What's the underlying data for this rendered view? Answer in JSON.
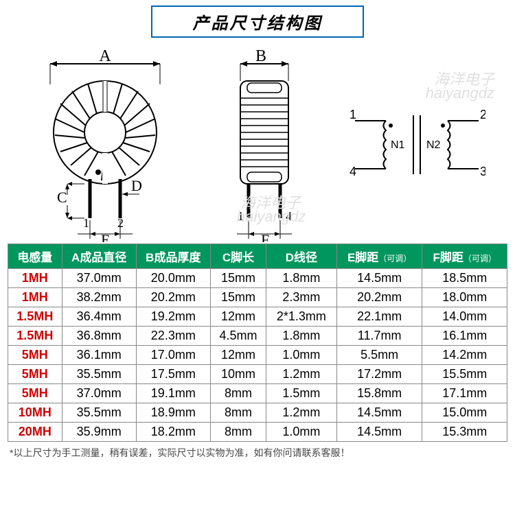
{
  "title": "产品尺寸结构图",
  "watermark": {
    "line1": "海洋电子",
    "line2": "haiyangdz"
  },
  "diagram_labels": {
    "A": "A",
    "B": "B",
    "C": "C",
    "D": "D",
    "E": "E",
    "F": "F",
    "pin1": "1",
    "pin2": "2",
    "pin3": "3",
    "pin4": "4",
    "N1": "N1",
    "N2": "N2"
  },
  "table": {
    "headers": [
      {
        "main": "电感量",
        "sub": ""
      },
      {
        "main": "A成品直径",
        "sub": ""
      },
      {
        "main": "B成品厚度",
        "sub": ""
      },
      {
        "main": "C脚长",
        "sub": ""
      },
      {
        "main": "D线径",
        "sub": ""
      },
      {
        "main": "E脚距",
        "sub": "（可调）"
      },
      {
        "main": "F脚距",
        "sub": "（可调）"
      }
    ],
    "rows": [
      [
        "1MH",
        "37.0mm",
        "20.0mm",
        "15mm",
        "1.8mm",
        "14.5mm",
        "18.5mm"
      ],
      [
        "1MH",
        "38.2mm",
        "20.2mm",
        "15mm",
        "2.3mm",
        "20.2mm",
        "18.0mm"
      ],
      [
        "1.5MH",
        "36.4mm",
        "19.2mm",
        "12mm",
        "2*1.3mm",
        "22.1mm",
        "14.0mm"
      ],
      [
        "1.5MH",
        "36.8mm",
        "22.3mm",
        "4.5mm",
        "1.8mm",
        "11.7mm",
        "16.1mm"
      ],
      [
        "5MH",
        "36.1mm",
        "17.0mm",
        "12mm",
        "1.0mm",
        "5.5mm",
        "14.2mm"
      ],
      [
        "5MH",
        "35.5mm",
        "17.5mm",
        "10mm",
        "1.2mm",
        "17.2mm",
        "15.5mm"
      ],
      [
        "5MH",
        "37.0mm",
        "19.1mm",
        "8mm",
        "1.5mm",
        "15.8mm",
        "17.1mm"
      ],
      [
        "10MH",
        "35.5mm",
        "18.9mm",
        "8mm",
        "1.2mm",
        "14.5mm",
        "15.0mm"
      ],
      [
        "20MH",
        "35.9mm",
        "18.2mm",
        "8mm",
        "1.0mm",
        "14.5mm",
        "15.3mm"
      ]
    ]
  },
  "footnote": "*以上尺寸为手工测量，稍有误差，实际尺寸以实物为准，如有你问请联系客服！",
  "colors": {
    "header_bg": "#00965e",
    "inductance_color": "#d00000",
    "title_border": "#0066b3",
    "border": "#888888"
  }
}
